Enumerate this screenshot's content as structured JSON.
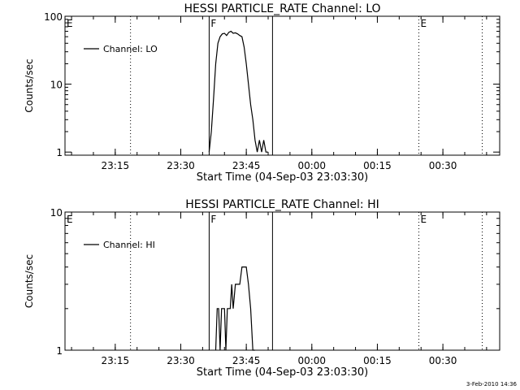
{
  "timestamp": "3-Feb-2010 14:36",
  "chart_data": [
    {
      "type": "line",
      "title": "HESSI PARTICLE_RATE Channel: LO",
      "xlabel": "Start Time (04-Sep-03 23:03:30)",
      "ylabel": "Counts/sec",
      "y_scale": "log",
      "ylim": [
        0.9,
        100
      ],
      "xlim": [
        "23:03:30",
        "00:43:00"
      ],
      "x_ticks": [
        "23:15",
        "23:30",
        "23:45",
        "00:00",
        "00:15",
        "00:30"
      ],
      "y_ticks": [
        "1",
        "10",
        "100"
      ],
      "grid": false,
      "legend": {
        "position": "top-left",
        "entries": [
          "Channel: LO"
        ]
      },
      "markers": [
        {
          "label": "E",
          "time": "23:03:30",
          "style": "none"
        },
        {
          "time": "23:18:30",
          "style": "dotted"
        },
        {
          "label": "F",
          "time": "23:36:30",
          "style": "solid"
        },
        {
          "time": "23:51:00",
          "style": "solid"
        },
        {
          "label": "E",
          "time": "00:24:30",
          "style": "dotted"
        },
        {
          "time": "00:39:00",
          "style": "dotted"
        }
      ],
      "series": [
        {
          "name": "Channel: LO",
          "x": [
            "23:36:30",
            "23:37:00",
            "23:37:30",
            "23:38:00",
            "23:38:30",
            "23:39:00",
            "23:39:30",
            "23:40:00",
            "23:40:30",
            "23:41:00",
            "23:41:30",
            "23:42:00",
            "23:42:30",
            "23:43:00",
            "23:43:30",
            "23:44:00",
            "23:44:30",
            "23:45:00",
            "23:45:30",
            "23:46:00",
            "23:46:30",
            "23:47:00",
            "23:47:30",
            "23:48:00",
            "23:48:30",
            "23:49:00",
            "23:49:30",
            "23:50:00"
          ],
          "values": [
            1,
            2,
            6,
            20,
            40,
            50,
            55,
            56,
            52,
            58,
            60,
            56,
            57,
            55,
            52,
            50,
            35,
            20,
            10,
            5,
            3,
            1.5,
            1,
            1.5,
            1,
            1.5,
            1,
            1
          ]
        }
      ]
    },
    {
      "type": "line",
      "title": "HESSI PARTICLE_RATE Channel: HI",
      "xlabel": "Start Time (04-Sep-03 23:03:30)",
      "ylabel": "Counts/sec",
      "y_scale": "log",
      "ylim": [
        1,
        10
      ],
      "xlim": [
        "23:03:30",
        "00:43:00"
      ],
      "x_ticks": [
        "23:15",
        "23:30",
        "23:45",
        "00:00",
        "00:15",
        "00:30"
      ],
      "y_ticks": [
        "1",
        "10"
      ],
      "grid": false,
      "legend": {
        "position": "top-left",
        "entries": [
          "Channel: HI"
        ]
      },
      "markers": [
        {
          "label": "E",
          "time": "23:03:30",
          "style": "none"
        },
        {
          "time": "23:18:30",
          "style": "dotted"
        },
        {
          "label": "F",
          "time": "23:36:30",
          "style": "solid"
        },
        {
          "time": "23:51:00",
          "style": "solid"
        },
        {
          "label": "E",
          "time": "00:24:30",
          "style": "dotted"
        },
        {
          "time": "00:39:00",
          "style": "dotted"
        }
      ],
      "series": [
        {
          "name": "Channel: HI",
          "x": [
            "23:38:00",
            "23:38:20",
            "23:38:40",
            "23:39:00",
            "23:39:20",
            "23:39:40",
            "23:40:00",
            "23:40:20",
            "23:40:40",
            "23:41:00",
            "23:41:20",
            "23:41:40",
            "23:42:00",
            "23:42:30",
            "23:43:00",
            "23:43:30",
            "23:44:00",
            "23:44:30",
            "23:45:00",
            "23:45:30",
            "23:46:00",
            "23:46:30",
            "23:47:00"
          ],
          "values": [
            1,
            2,
            2,
            1,
            2,
            2,
            2,
            1,
            2,
            2,
            2,
            3,
            2,
            3,
            3,
            3,
            4,
            4,
            4,
            3,
            2,
            1,
            1
          ]
        }
      ]
    }
  ]
}
